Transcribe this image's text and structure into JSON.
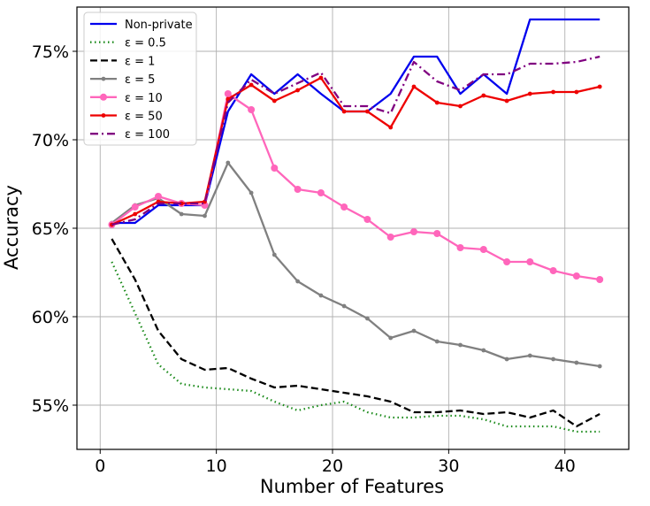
{
  "chart_data": {
    "type": "line",
    "xlabel": "Number of Features",
    "ylabel": "Accuracy",
    "xlim": [
      -2,
      45.5
    ],
    "ylim": [
      52.5,
      77.5
    ],
    "xticks": [
      0,
      10,
      20,
      30,
      40
    ],
    "yticks": [
      55,
      60,
      65,
      70,
      75
    ],
    "ytick_labels": [
      "55%",
      "60%",
      "65%",
      "70%",
      "75%"
    ],
    "grid": true,
    "legend_position": "top-left",
    "x": [
      1,
      3,
      5,
      7,
      9,
      11,
      13,
      15,
      17,
      19,
      21,
      23,
      25,
      27,
      29,
      31,
      33,
      35,
      37,
      39,
      41,
      43
    ],
    "series": [
      {
        "name": "Non-private",
        "color": "#0000ee",
        "dash": "solid",
        "marker": "none",
        "values": [
          65.3,
          65.3,
          66.3,
          66.3,
          66.3,
          71.6,
          73.7,
          72.6,
          73.7,
          72.6,
          71.6,
          71.6,
          72.6,
          74.7,
          74.7,
          72.6,
          73.7,
          72.6,
          76.8,
          76.8,
          76.8,
          76.8
        ]
      },
      {
        "name": "ε = 0.5",
        "color": "#1a8a1a",
        "dash": "dotted",
        "marker": "none",
        "values": [
          63.1,
          60.2,
          57.3,
          56.2,
          56.0,
          55.9,
          55.8,
          55.2,
          54.7,
          55.0,
          55.2,
          54.6,
          54.3,
          54.3,
          54.4,
          54.4,
          54.2,
          53.8,
          53.8,
          53.8,
          53.5,
          53.5
        ]
      },
      {
        "name": "ε = 1",
        "color": "#000000",
        "dash": "dashed",
        "marker": "none",
        "values": [
          64.4,
          62.1,
          59.2,
          57.6,
          57.0,
          57.1,
          56.5,
          56.0,
          56.1,
          55.9,
          55.7,
          55.5,
          55.2,
          54.6,
          54.6,
          54.7,
          54.5,
          54.6,
          54.3,
          54.7,
          53.8,
          54.5
        ]
      },
      {
        "name": "ε = 5",
        "color": "#808080",
        "dash": "solid",
        "marker": "dot",
        "values": [
          65.3,
          66.3,
          66.7,
          65.8,
          65.7,
          68.7,
          67.0,
          63.5,
          62.0,
          61.2,
          60.6,
          59.9,
          58.8,
          59.2,
          58.6,
          58.4,
          58.1,
          57.6,
          57.8,
          57.6,
          57.4,
          57.2
        ]
      },
      {
        "name": "ε = 10",
        "color": "#ff66bb",
        "dash": "solid",
        "marker": "circle",
        "values": [
          65.2,
          66.2,
          66.8,
          66.4,
          66.3,
          72.6,
          71.7,
          68.4,
          67.2,
          67.0,
          66.2,
          65.5,
          64.5,
          64.8,
          64.7,
          63.9,
          63.8,
          63.1,
          63.1,
          62.6,
          62.3,
          62.1
        ]
      },
      {
        "name": "ε = 50",
        "color": "#ee0000",
        "dash": "solid",
        "marker": "dot",
        "values": [
          65.2,
          65.8,
          66.5,
          66.4,
          66.5,
          72.3,
          73.1,
          72.2,
          72.8,
          73.5,
          71.6,
          71.6,
          70.7,
          73.0,
          72.1,
          71.9,
          72.5,
          72.2,
          72.6,
          72.7,
          72.7,
          73.0
        ]
      },
      {
        "name": "ε = 100",
        "color": "#800080",
        "dash": "dashdot",
        "marker": "none",
        "values": [
          65.2,
          65.5,
          66.4,
          66.4,
          66.4,
          72.1,
          73.4,
          72.6,
          73.2,
          73.8,
          71.9,
          71.9,
          71.5,
          74.4,
          73.3,
          72.8,
          73.7,
          73.7,
          74.3,
          74.3,
          74.4,
          74.7
        ]
      }
    ]
  }
}
